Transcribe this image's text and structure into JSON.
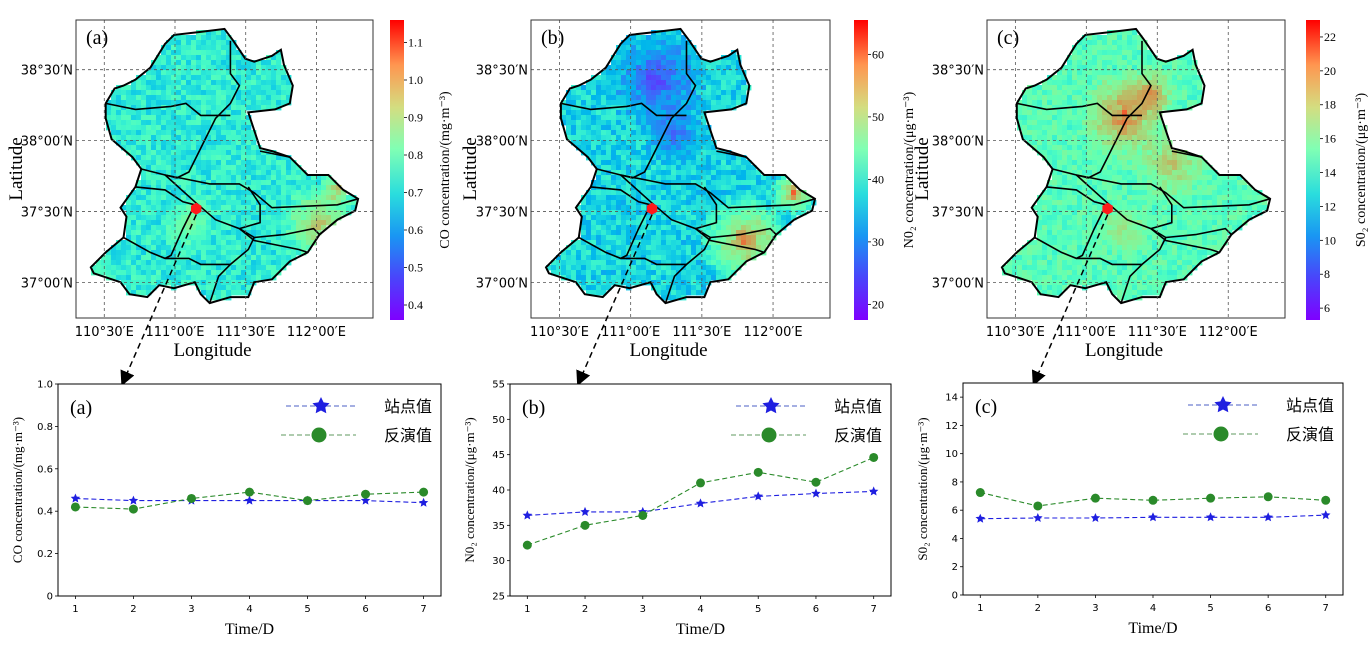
{
  "figure": {
    "legend_station": "站点值",
    "legend_retrieved": "反演值",
    "station_marker_color": "#ff1a1a",
    "colormap": "rainbow",
    "series_colors": {
      "station": "#1f1fe0",
      "retrieved": "#2a8a2a"
    }
  },
  "chart_data": [
    {
      "type": "heatmap",
      "panel": "(a)",
      "title": "CO concentration map",
      "xlabel": "Longitude",
      "ylabel": "Latitude",
      "xticks": [
        "110°30′E",
        "111°00′E",
        "111°30′E",
        "112°00′E"
      ],
      "yticks": [
        "38°30′N",
        "38°00′N",
        "37°30′N",
        "37°00′N"
      ],
      "xlim": [
        110.3,
        112.4
      ],
      "ylim": [
        36.75,
        38.85
      ],
      "grid": true,
      "colorbar": {
        "label": "CO concentration/(mg·m⁻³)",
        "ticks": [
          "0.4",
          "0.5",
          "0.6",
          "0.7",
          "0.8",
          "0.9",
          "1.0",
          "1.1"
        ],
        "range": [
          0.36,
          1.16
        ]
      },
      "station": {
        "lon": 111.15,
        "lat": 37.52
      }
    },
    {
      "type": "heatmap",
      "panel": "(b)",
      "title": "NO2 concentration map",
      "xlabel": "Longitude",
      "ylabel": "Latitude",
      "xticks": [
        "110°30′E",
        "111°00′E",
        "111°30′E",
        "112°00′E"
      ],
      "yticks": [
        "38°30′N",
        "38°00′N",
        "37°30′N",
        "37°00′N"
      ],
      "xlim": [
        110.3,
        112.4
      ],
      "ylim": [
        36.75,
        38.85
      ],
      "grid": true,
      "colorbar": {
        "label": "N0₂ concentration/(μg·m⁻³)",
        "ticks": [
          "20",
          "30",
          "40",
          "50",
          "60"
        ],
        "range": [
          17.5,
          65.5
        ]
      },
      "station": {
        "lon": 111.15,
        "lat": 37.52
      }
    },
    {
      "type": "heatmap",
      "panel": "(c)",
      "title": "SO2 concentration map",
      "xlabel": "Longitude",
      "ylabel": "Latitude",
      "xticks": [
        "110°30′E",
        "111°00′E",
        "111°30′E",
        "112°00′E"
      ],
      "yticks": [
        "38°30′N",
        "38°00′N",
        "37°30′N",
        "37°00′N"
      ],
      "xlim": [
        110.3,
        112.4
      ],
      "ylim": [
        36.75,
        38.85
      ],
      "grid": true,
      "colorbar": {
        "label": "S0₂ concentration/(μg·m⁻³)",
        "ticks": [
          "6",
          "8",
          "10",
          "12",
          "14",
          "16",
          "18",
          "20",
          "22"
        ],
        "range": [
          5.3,
          23
        ]
      },
      "station": {
        "lon": 111.15,
        "lat": 37.52
      }
    },
    {
      "type": "line",
      "panel": "(a)",
      "xlabel": "Time/D",
      "ylabel": "CO concentration/(mg·m⁻³)",
      "x": [
        1,
        2,
        3,
        4,
        5,
        6,
        7
      ],
      "ylim": [
        0,
        1.0
      ],
      "yticks": [
        0,
        0.2,
        0.4,
        0.6,
        0.8,
        1.0
      ],
      "ytick_labels": [
        "0",
        "0.2",
        "0.4",
        "0.6",
        "0.8",
        "1.0"
      ],
      "legend": "top-right",
      "series": [
        {
          "name": "站点值",
          "marker": "star",
          "values": [
            0.46,
            0.45,
            0.45,
            0.45,
            0.45,
            0.45,
            0.44
          ]
        },
        {
          "name": "反演值",
          "marker": "circle",
          "values": [
            0.42,
            0.41,
            0.46,
            0.49,
            0.45,
            0.48,
            0.49
          ]
        }
      ]
    },
    {
      "type": "line",
      "panel": "(b)",
      "xlabel": "Time/D",
      "ylabel": "N0₂ concentration/(μg·m⁻³)",
      "x": [
        1,
        2,
        3,
        4,
        5,
        6,
        7
      ],
      "ylim": [
        25,
        55
      ],
      "yticks": [
        25,
        30,
        35,
        40,
        45,
        50,
        55
      ],
      "ytick_labels": [
        "25",
        "30",
        "35",
        "40",
        "45",
        "50",
        "55"
      ],
      "legend": "top-right",
      "series": [
        {
          "name": "站点值",
          "marker": "star",
          "values": [
            36.4,
            36.9,
            36.9,
            38.1,
            39.1,
            39.5,
            39.8
          ]
        },
        {
          "name": "反演值",
          "marker": "circle",
          "values": [
            32.2,
            35.0,
            36.4,
            41.0,
            42.5,
            41.1,
            44.6
          ]
        }
      ]
    },
    {
      "type": "line",
      "panel": "(c)",
      "xlabel": "Time/D",
      "ylabel": "S0₂ concentration/(μg·m⁻³)",
      "x": [
        1,
        2,
        3,
        4,
        5,
        6,
        7
      ],
      "ylim": [
        0,
        15
      ],
      "yticks": [
        0,
        2,
        4,
        6,
        8,
        10,
        12,
        14
      ],
      "ytick_labels": [
        "0",
        "2",
        "4",
        "6",
        "8",
        "10",
        "12",
        "14"
      ],
      "legend": "top-right",
      "series": [
        {
          "name": "站点值",
          "marker": "star",
          "values": [
            5.4,
            5.45,
            5.45,
            5.5,
            5.5,
            5.5,
            5.65
          ]
        },
        {
          "name": "反演值",
          "marker": "circle",
          "values": [
            7.25,
            6.3,
            6.85,
            6.7,
            6.85,
            6.95,
            6.7
          ]
        }
      ]
    }
  ]
}
